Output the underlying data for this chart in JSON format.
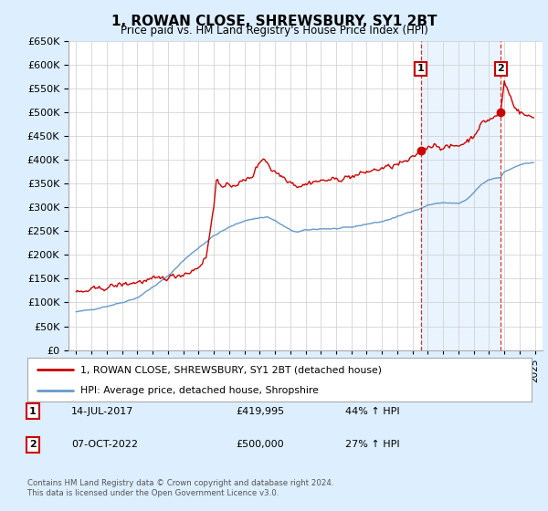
{
  "title": "1, ROWAN CLOSE, SHREWSBURY, SY1 2BT",
  "subtitle": "Price paid vs. HM Land Registry's House Price Index (HPI)",
  "legend_line1": "1, ROWAN CLOSE, SHREWSBURY, SY1 2BT (detached house)",
  "legend_line2": "HPI: Average price, detached house, Shropshire",
  "annotation1_label": "1",
  "annotation1_date": "14-JUL-2017",
  "annotation1_price": "£419,995",
  "annotation1_pct": "44% ↑ HPI",
  "annotation2_label": "2",
  "annotation2_date": "07-OCT-2022",
  "annotation2_price": "£500,000",
  "annotation2_pct": "27% ↑ HPI",
  "footer": "Contains HM Land Registry data © Crown copyright and database right 2024.\nThis data is licensed under the Open Government Licence v3.0.",
  "price_color": "#cc0000",
  "hpi_color": "#6699cc",
  "background_color": "#ddeeff",
  "plot_bg_color": "#ffffff",
  "shade_color": "#ddeeff",
  "grid_color": "#cccccc",
  "ylim": [
    0,
    650000
  ],
  "ytick_max": 650000,
  "ytick_step": 50000,
  "vline1_x": 2017.54,
  "vline2_x": 2022.77,
  "sale1_x": 2017.54,
  "sale1_y": 419995,
  "sale2_x": 2022.77,
  "sale2_y": 500000,
  "xmin": 1995,
  "xmax": 2025
}
